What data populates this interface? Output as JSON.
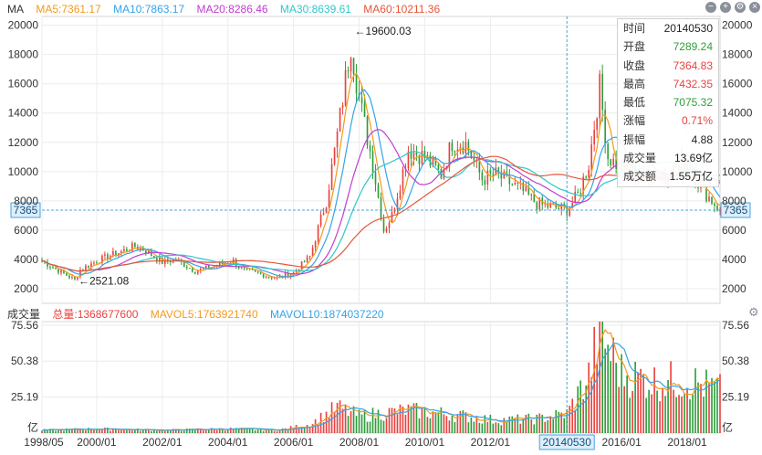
{
  "header": {
    "indicator": "MA",
    "ma5": "MA5:7361.17",
    "ma10": "MA10:7863.17",
    "ma20": "MA20:8286.46",
    "ma30": "MA30:8639.61",
    "ma60": "MA60:10211.36"
  },
  "volume_header": {
    "label": "成交量",
    "total": "总量:1368677600",
    "mavol5": "MAVOL5:1763921740",
    "mavol10": "MAVOL10:1874037220"
  },
  "colors": {
    "up": "#e8423f",
    "down": "#2e9e3a",
    "ma5": "#f39a1e",
    "ma10": "#35a3e8",
    "ma20": "#c13ccf",
    "ma30": "#2fc7c9",
    "ma60": "#e8553a",
    "crosshair": "#4aa3df"
  },
  "icons": [
    "zoom-out-icon",
    "zoom-in-icon",
    "settings-icon",
    "close-icon"
  ],
  "crosshair": {
    "price_label": "7365",
    "date_label": "20140530",
    "price": 7365
  },
  "annotations": [
    {
      "text": "←19600.03",
      "value": 19600.03,
      "date": "2007/10"
    },
    {
      "text": "←2521.08",
      "value": 2521.08,
      "date": "1999/05"
    }
  ],
  "tooltip": [
    {
      "label": "时间",
      "value": "20140530",
      "tone": "neutral"
    },
    {
      "label": "开盘",
      "value": "7289.24",
      "tone": "down"
    },
    {
      "label": "收盘",
      "value": "7364.83",
      "tone": "up"
    },
    {
      "label": "最高",
      "value": "7432.35",
      "tone": "up"
    },
    {
      "label": "最低",
      "value": "7075.32",
      "tone": "down"
    },
    {
      "label": "涨幅",
      "value": "0.71%",
      "tone": "up"
    },
    {
      "label": "振幅",
      "value": "4.88",
      "tone": "neutral"
    },
    {
      "label": "成交量",
      "value": "13.69亿",
      "tone": "neutral"
    },
    {
      "label": "成交额",
      "value": "1.55万亿",
      "tone": "neutral"
    }
  ],
  "chart_data": [
    {
      "type": "line",
      "chart": "monthly candlestick price chart with moving averages",
      "ylim": [
        1000,
        20600
      ],
      "y_ticks": [
        "20000",
        "18000",
        "16000",
        "14000",
        "12000",
        "10000",
        "8000",
        "6000",
        "4000",
        "2000"
      ],
      "y_tick_values": [
        20000,
        18000,
        16000,
        14000,
        12000,
        10000,
        8000,
        6000,
        4000,
        2000
      ],
      "x_ticks": [
        "1998/05",
        "2000/01",
        "2002/01",
        "2004/01",
        "2006/01",
        "2008/01",
        "2010/01",
        "2012/01",
        "2016/01",
        "2018/01"
      ],
      "x_tick_dates": [
        "1998/05",
        "2000/01",
        "2002/01",
        "2004/01",
        "2006/01",
        "2008/01",
        "2010/01",
        "2012/01",
        "2016/01",
        "2018/01"
      ],
      "x_range": [
        "1998/05",
        "2019/01"
      ],
      "close_anchors": [
        [
          "1998/05",
          3900
        ],
        [
          "1999/05",
          2600
        ],
        [
          "1999/07",
          3300
        ],
        [
          "2000/01",
          3900
        ],
        [
          "2001/03",
          4900
        ],
        [
          "2001/06",
          4700
        ],
        [
          "2002/01",
          3800
        ],
        [
          "2002/06",
          4000
        ],
        [
          "2003/01",
          3200
        ],
        [
          "2004/03",
          3900
        ],
        [
          "2004/06",
          3300
        ],
        [
          "2005/01",
          3000
        ],
        [
          "2005/07",
          2700
        ],
        [
          "2006/01",
          3100
        ],
        [
          "2006/07",
          4200
        ],
        [
          "2007/01",
          8000
        ],
        [
          "2007/05",
          12500
        ],
        [
          "2007/10",
          18800
        ],
        [
          "2008/01",
          15000
        ],
        [
          "2008/06",
          10500
        ],
        [
          "2008/10",
          6000
        ],
        [
          "2009/01",
          7000
        ],
        [
          "2009/07",
          11500
        ],
        [
          "2010/01",
          11000
        ],
        [
          "2010/07",
          9800
        ],
        [
          "2010/11",
          12000
        ],
        [
          "2011/04",
          11900
        ],
        [
          "2011/10",
          9500
        ],
        [
          "2012/03",
          9800
        ],
        [
          "2012/12",
          8800
        ],
        [
          "2013/06",
          7800
        ],
        [
          "2014/05",
          7365
        ],
        [
          "2014/09",
          8400
        ],
        [
          "2015/01",
          10500
        ],
        [
          "2015/05",
          15800
        ],
        [
          "2015/08",
          11000
        ],
        [
          "2016/01",
          10200
        ],
        [
          "2016/06",
          9600
        ],
        [
          "2017/06",
          9900
        ],
        [
          "2018/01",
          10800
        ],
        [
          "2018/06",
          8900
        ],
        [
          "2019/01",
          7365
        ]
      ],
      "series": [
        {
          "legend": "MA5",
          "color_key": "ma5",
          "period": 5
        },
        {
          "legend": "MA10",
          "color_key": "ma10",
          "period": 10
        },
        {
          "legend": "MA20",
          "color_key": "ma20",
          "period": 20
        },
        {
          "legend": "MA30",
          "color_key": "ma30",
          "period": 30
        },
        {
          "legend": "MA60",
          "color_key": "ma60",
          "period": 60
        }
      ],
      "grid": true,
      "legend": "top-left"
    },
    {
      "type": "bar",
      "chart": "monthly volume",
      "unit": "亿",
      "ylim": [
        0,
        78
      ],
      "y_ticks": [
        "75.56",
        "50.38",
        "25.19",
        "亿"
      ],
      "y_tick_values": [
        75.56,
        50.38,
        25.19,
        0
      ],
      "volume_anchors": [
        [
          "1998/05",
          2
        ],
        [
          "2000/01",
          3
        ],
        [
          "2002/01",
          2
        ],
        [
          "2004/01",
          3
        ],
        [
          "2005/07",
          2
        ],
        [
          "2006/07",
          6
        ],
        [
          "2007/05",
          18
        ],
        [
          "2008/01",
          12
        ],
        [
          "2009/07",
          16
        ],
        [
          "2010/11",
          13
        ],
        [
          "2012/03",
          9
        ],
        [
          "2013/06",
          10
        ],
        [
          "2014/05",
          13.69
        ],
        [
          "2015/01",
          40
        ],
        [
          "2015/05",
          72
        ],
        [
          "2015/08",
          60
        ],
        [
          "2016/01",
          42
        ],
        [
          "2017/01",
          36
        ],
        [
          "2018/01",
          37
        ],
        [
          "2019/01",
          30
        ]
      ],
      "series": [
        {
          "legend": "MAVOL5",
          "color_key": "ma5"
        },
        {
          "legend": "MAVOL10",
          "color_key": "ma10"
        }
      ]
    }
  ]
}
